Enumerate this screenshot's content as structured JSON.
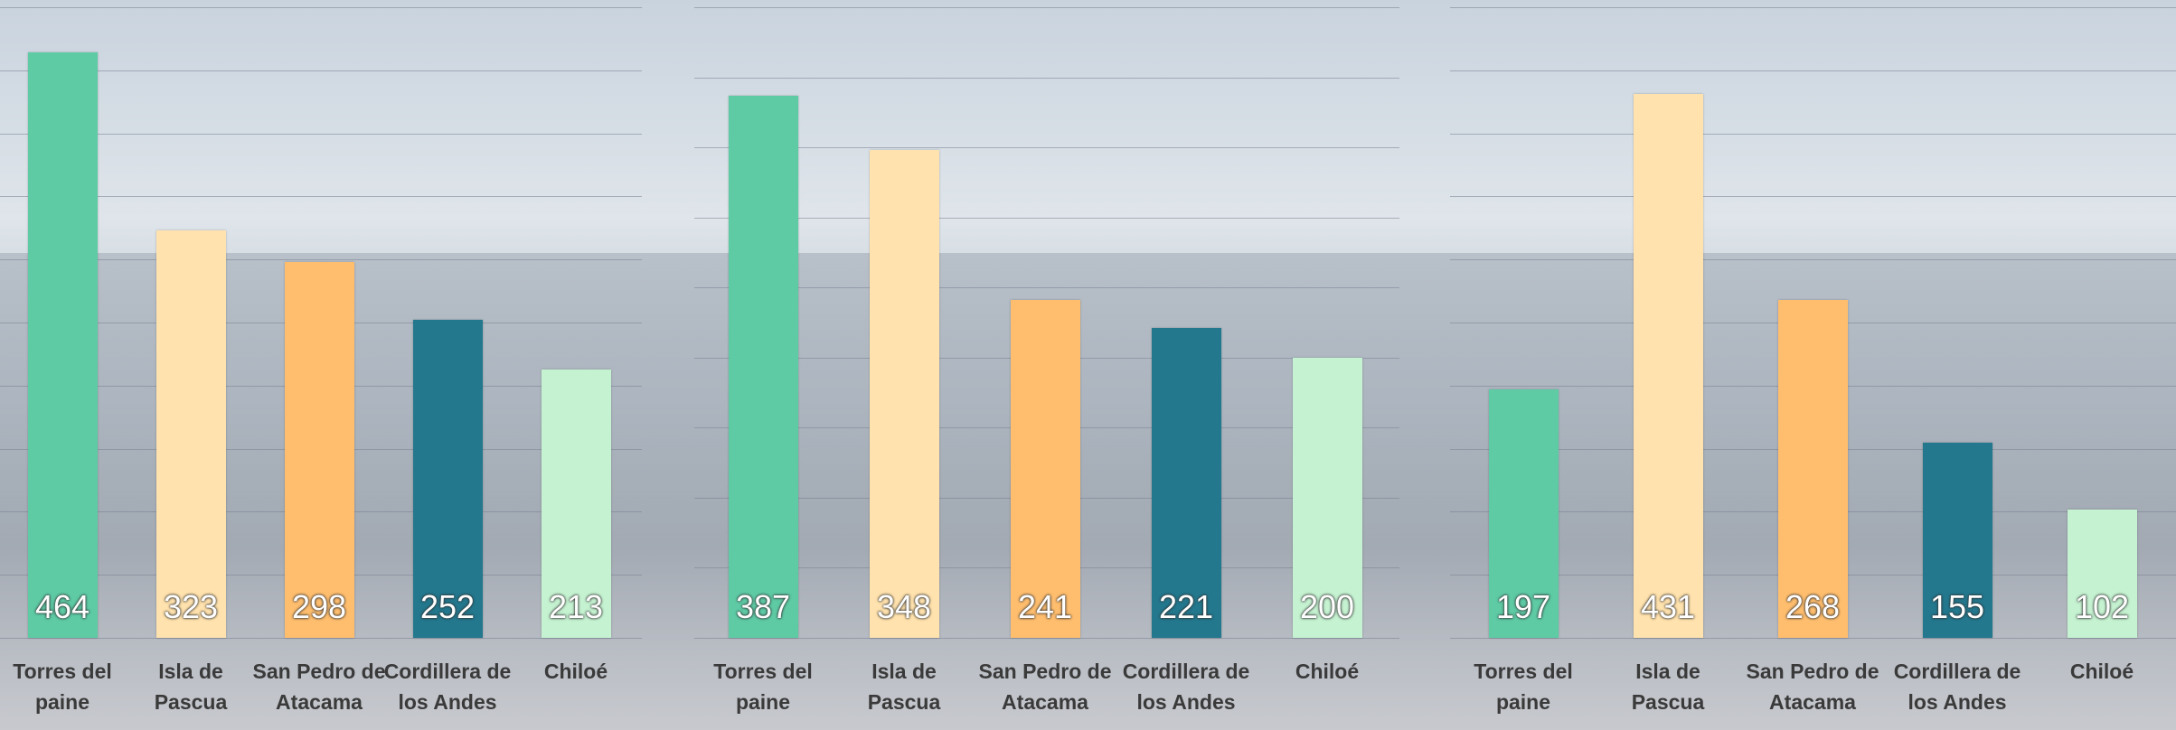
{
  "chart_data": [
    {
      "type": "bar",
      "categories": [
        "Torres del paine",
        "Isla de Pascua",
        "San Pedro de Atacama",
        "Cordillera de los Andes",
        "Chiloé"
      ],
      "values": [
        464,
        323,
        298,
        252,
        213
      ],
      "colors": [
        "#5ecba5",
        "#ffe2ad",
        "#ffbe6e",
        "#23788e",
        "#c5f2d1"
      ],
      "ylim": [
        0,
        500
      ],
      "yticks": [
        0,
        50,
        100,
        150,
        200,
        250,
        300,
        350,
        400,
        450,
        500
      ],
      "grid": true
    },
    {
      "type": "bar",
      "categories": [
        "Torres del paine",
        "Isla de Pascua",
        "San Pedro de Atacama",
        "Cordillera de los Andes",
        "Chiloé"
      ],
      "values": [
        387,
        348,
        241,
        221,
        200
      ],
      "colors": [
        "#5ecba5",
        "#ffe2ad",
        "#ffbe6e",
        "#23788e",
        "#c5f2d1"
      ],
      "ylim": [
        0,
        450
      ],
      "yticks": [
        0,
        50,
        100,
        150,
        200,
        250,
        300,
        350,
        400,
        450
      ],
      "grid": true
    },
    {
      "type": "bar",
      "categories": [
        "Torres del paine",
        "Isla de Pascua",
        "San Pedro de Atacama",
        "Cordillera de los Andes",
        "Chiloé"
      ],
      "values": [
        197,
        431,
        268,
        155,
        102
      ],
      "colors": [
        "#5ecba5",
        "#ffe2ad",
        "#ffbe6e",
        "#23788e",
        "#c5f2d1"
      ],
      "ylim": [
        0,
        500
      ],
      "yticks": [
        0,
        50,
        100,
        150,
        200,
        250,
        300,
        350,
        400,
        450,
        500
      ],
      "grid": true
    }
  ]
}
